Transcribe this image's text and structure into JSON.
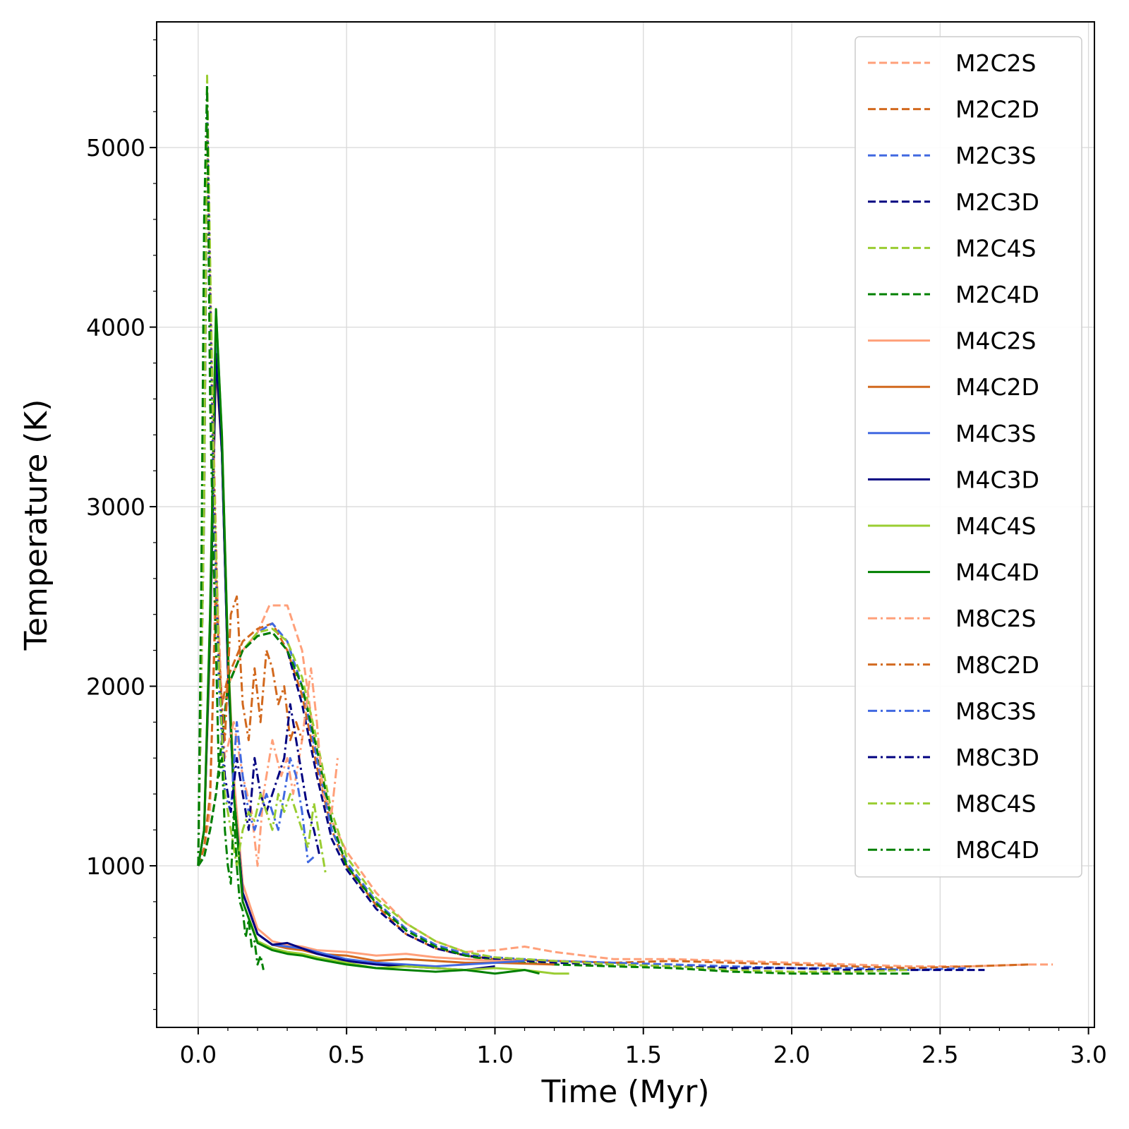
{
  "chart_data": {
    "type": "line",
    "xlabel": "Time (Myr)",
    "ylabel": "Temperature (K)",
    "xlim": [
      -0.14,
      3.02
    ],
    "ylim": [
      100,
      5700
    ],
    "x_ticks": [
      0.0,
      0.5,
      1.0,
      1.5,
      2.0,
      2.5,
      3.0
    ],
    "x_tick_labels": [
      "0.0",
      "0.5",
      "1.0",
      "1.5",
      "2.0",
      "2.5",
      "3.0"
    ],
    "y_ticks": [
      1000,
      2000,
      3000,
      4000,
      5000
    ],
    "y_tick_labels": [
      "1000",
      "2000",
      "3000",
      "4000",
      "5000"
    ],
    "grid": true,
    "legend_position": "top-right",
    "series": [
      {
        "name": "M2C2S",
        "color": "#FFA07A",
        "dash": "dashed",
        "x": [
          0,
          0.02,
          0.04,
          0.06,
          0.08,
          0.1,
          0.15,
          0.2,
          0.24,
          0.3,
          0.35,
          0.4,
          0.45,
          0.5,
          0.6,
          0.7,
          0.8,
          0.9,
          1.0,
          1.1,
          1.2,
          1.4,
          1.6,
          1.8,
          2.0,
          2.2,
          2.4,
          2.6,
          2.8,
          2.88
        ],
        "y": [
          1000,
          1100,
          1300,
          2700,
          1900,
          2000,
          2200,
          2300,
          2450,
          2450,
          2200,
          1600,
          1250,
          1080,
          850,
          680,
          580,
          520,
          530,
          550,
          520,
          480,
          480,
          470,
          460,
          450,
          440,
          440,
          450,
          450
        ]
      },
      {
        "name": "M2C2D",
        "color": "#D2691E",
        "dash": "dashed",
        "x": [
          0,
          0.02,
          0.04,
          0.06,
          0.08,
          0.1,
          0.15,
          0.2,
          0.25,
          0.3,
          0.35,
          0.4,
          0.45,
          0.5,
          0.6,
          0.7,
          0.8,
          0.9,
          1.0,
          1.2,
          1.4,
          1.6,
          1.8,
          2.0,
          2.2,
          2.4,
          2.6,
          2.8
        ],
        "y": [
          1000,
          1100,
          1400,
          2500,
          1900,
          2050,
          2250,
          2320,
          2350,
          2200,
          1950,
          1550,
          1200,
          1000,
          780,
          620,
          540,
          500,
          480,
          470,
          460,
          470,
          460,
          450,
          440,
          430,
          440,
          450
        ]
      },
      {
        "name": "M2C3S",
        "color": "#4169E1",
        "dash": "dashed",
        "x": [
          0,
          0.02,
          0.04,
          0.06,
          0.08,
          0.1,
          0.15,
          0.2,
          0.25,
          0.3,
          0.35,
          0.4,
          0.45,
          0.5,
          0.6,
          0.7,
          0.8,
          0.9,
          1.0,
          1.2,
          1.4,
          1.6,
          1.8,
          2.0,
          2.2,
          2.4,
          2.6
        ],
        "y": [
          1000,
          1050,
          1200,
          1400,
          1700,
          2000,
          2200,
          2300,
          2350,
          2250,
          2000,
          1600,
          1200,
          1020,
          800,
          650,
          560,
          510,
          490,
          470,
          460,
          450,
          440,
          430,
          430,
          420,
          430
        ]
      },
      {
        "name": "M2C3D",
        "color": "#000080",
        "dash": "dashed",
        "x": [
          0,
          0.02,
          0.04,
          0.06,
          0.08,
          0.1,
          0.15,
          0.2,
          0.25,
          0.3,
          0.35,
          0.4,
          0.45,
          0.5,
          0.6,
          0.7,
          0.8,
          0.9,
          1.0,
          1.2,
          1.4,
          1.6,
          1.8,
          2.0,
          2.2,
          2.4,
          2.65
        ],
        "y": [
          1000,
          1050,
          1200,
          1400,
          1700,
          2000,
          2200,
          2280,
          2300,
          2200,
          1900,
          1500,
          1150,
          980,
          760,
          620,
          540,
          500,
          480,
          460,
          450,
          440,
          430,
          430,
          420,
          420,
          420
        ]
      },
      {
        "name": "M2C4S",
        "color": "#9ACD32",
        "dash": "dashed",
        "x": [
          0,
          0.02,
          0.04,
          0.06,
          0.08,
          0.1,
          0.15,
          0.2,
          0.25,
          0.3,
          0.35,
          0.4,
          0.45,
          0.5,
          0.6,
          0.7,
          0.8,
          0.9,
          1.0,
          1.2,
          1.4,
          1.6,
          1.8,
          2.0,
          2.2,
          2.4
        ],
        "y": [
          1000,
          1050,
          1200,
          1400,
          1700,
          2000,
          2200,
          2300,
          2320,
          2250,
          2050,
          1700,
          1300,
          1050,
          820,
          680,
          580,
          520,
          490,
          470,
          450,
          440,
          420,
          410,
          410,
          420
        ]
      },
      {
        "name": "M2C4D",
        "color": "#008000",
        "dash": "dashed",
        "x": [
          0,
          0.02,
          0.04,
          0.06,
          0.08,
          0.1,
          0.15,
          0.2,
          0.25,
          0.3,
          0.35,
          0.4,
          0.45,
          0.5,
          0.6,
          0.7,
          0.8,
          0.9,
          1.0,
          1.2,
          1.4,
          1.6,
          1.8,
          2.0,
          2.2,
          2.4
        ],
        "y": [
          1000,
          1050,
          1200,
          1400,
          1700,
          2000,
          2200,
          2280,
          2300,
          2200,
          2000,
          1650,
          1250,
          1000,
          790,
          640,
          550,
          500,
          470,
          450,
          440,
          430,
          410,
          400,
          400,
          400
        ]
      },
      {
        "name": "M4C2S",
        "color": "#FFA07A",
        "dash": "solid",
        "x": [
          0,
          0.02,
          0.04,
          0.06,
          0.08,
          0.1,
          0.12,
          0.15,
          0.2,
          0.25,
          0.3,
          0.35,
          0.4,
          0.5,
          0.6,
          0.7,
          0.8,
          0.9,
          1.0,
          1.1
        ],
        "y": [
          1000,
          1200,
          2200,
          3900,
          3400,
          2200,
          1500,
          900,
          650,
          580,
          560,
          550,
          530,
          520,
          500,
          510,
          490,
          480,
          470,
          470
        ]
      },
      {
        "name": "M4C2D",
        "color": "#D2691E",
        "dash": "solid",
        "x": [
          0,
          0.02,
          0.04,
          0.06,
          0.08,
          0.1,
          0.12,
          0.15,
          0.2,
          0.25,
          0.3,
          0.35,
          0.4,
          0.5,
          0.6,
          0.7,
          0.8,
          0.9,
          1.0,
          1.2
        ],
        "y": [
          1000,
          1200,
          2300,
          3800,
          3300,
          2100,
          1400,
          850,
          620,
          560,
          540,
          530,
          510,
          500,
          470,
          480,
          470,
          460,
          460,
          450
        ]
      },
      {
        "name": "M4C3S",
        "color": "#4169E1",
        "dash": "solid",
        "x": [
          0,
          0.02,
          0.04,
          0.06,
          0.08,
          0.1,
          0.12,
          0.15,
          0.2,
          0.25,
          0.3,
          0.35,
          0.4,
          0.5,
          0.6,
          0.7,
          0.8,
          0.9,
          1.0,
          1.1
        ],
        "y": [
          1000,
          1200,
          2300,
          3900,
          3300,
          2100,
          1400,
          850,
          620,
          560,
          550,
          540,
          520,
          480,
          460,
          450,
          440,
          450,
          460,
          470
        ]
      },
      {
        "name": "M4C3D",
        "color": "#000080",
        "dash": "solid",
        "x": [
          0,
          0.02,
          0.04,
          0.06,
          0.08,
          0.1,
          0.12,
          0.15,
          0.2,
          0.25,
          0.3,
          0.35,
          0.4,
          0.5,
          0.6,
          0.7,
          0.8,
          0.9,
          1.0
        ],
        "y": [
          1000,
          1200,
          2300,
          3850,
          3300,
          2100,
          1400,
          850,
          620,
          560,
          570,
          540,
          510,
          470,
          450,
          440,
          430,
          420,
          440
        ]
      },
      {
        "name": "M4C4S",
        "color": "#9ACD32",
        "dash": "solid",
        "x": [
          0,
          0.02,
          0.04,
          0.06,
          0.08,
          0.1,
          0.12,
          0.15,
          0.2,
          0.25,
          0.3,
          0.35,
          0.4,
          0.5,
          0.6,
          0.7,
          0.8,
          0.9,
          1.0,
          1.1,
          1.2,
          1.25
        ],
        "y": [
          1000,
          1200,
          2400,
          4100,
          3400,
          2200,
          1400,
          800,
          580,
          540,
          520,
          510,
          490,
          460,
          430,
          440,
          430,
          420,
          430,
          420,
          400,
          400
        ]
      },
      {
        "name": "M4C4D",
        "color": "#008000",
        "dash": "solid",
        "x": [
          0,
          0.02,
          0.04,
          0.06,
          0.08,
          0.1,
          0.12,
          0.15,
          0.2,
          0.25,
          0.3,
          0.35,
          0.4,
          0.5,
          0.6,
          0.7,
          0.8,
          0.9,
          1.0,
          1.1,
          1.15
        ],
        "y": [
          1000,
          1200,
          2400,
          4100,
          3400,
          2200,
          1400,
          800,
          570,
          530,
          510,
          500,
          480,
          450,
          430,
          420,
          410,
          420,
          400,
          420,
          400
        ]
      },
      {
        "name": "M8C2S",
        "color": "#FFA07A",
        "dash": "dashdot",
        "x": [
          0,
          0.02,
          0.03,
          0.05,
          0.07,
          0.09,
          0.12,
          0.15,
          0.18,
          0.2,
          0.22,
          0.25,
          0.28,
          0.3,
          0.32,
          0.35,
          0.38,
          0.4,
          0.42,
          0.45,
          0.47
        ],
        "y": [
          1000,
          3000,
          5200,
          3500,
          2200,
          1600,
          1800,
          1500,
          1300,
          1000,
          1400,
          1700,
          1500,
          1600,
          1400,
          1700,
          2100,
          1800,
          1400,
          1300,
          1600
        ]
      },
      {
        "name": "M8C2D",
        "color": "#D2691E",
        "dash": "dashdot",
        "x": [
          0,
          0.02,
          0.03,
          0.05,
          0.07,
          0.09,
          0.11,
          0.13,
          0.15,
          0.17,
          0.19,
          0.21,
          0.23,
          0.25,
          0.27,
          0.29,
          0.31,
          0.33,
          0.35
        ],
        "y": [
          1000,
          3000,
          5100,
          3300,
          2100,
          1700,
          2400,
          2500,
          1900,
          1700,
          2100,
          1800,
          2200,
          2100,
          1900,
          2000,
          1700,
          1800,
          1700
        ]
      },
      {
        "name": "M8C3S",
        "color": "#4169E1",
        "dash": "dashdot",
        "x": [
          0,
          0.02,
          0.03,
          0.05,
          0.07,
          0.09,
          0.11,
          0.13,
          0.15,
          0.17,
          0.19,
          0.21,
          0.23,
          0.25,
          0.27,
          0.29,
          0.31,
          0.33,
          0.35,
          0.37,
          0.39
        ],
        "y": [
          1000,
          3000,
          5200,
          3200,
          2000,
          1400,
          1300,
          1800,
          1500,
          1300,
          1200,
          1300,
          1400,
          1300,
          1200,
          1400,
          1600,
          1500,
          1300,
          1020,
          1050
        ]
      },
      {
        "name": "M8C3D",
        "color": "#000080",
        "dash": "dashdot",
        "x": [
          0,
          0.02,
          0.03,
          0.05,
          0.07,
          0.09,
          0.11,
          0.13,
          0.15,
          0.17,
          0.19,
          0.21,
          0.23,
          0.25,
          0.27,
          0.29,
          0.31,
          0.33,
          0.35,
          0.37,
          0.39,
          0.41
        ],
        "y": [
          1000,
          3000,
          5300,
          3300,
          2100,
          1500,
          1300,
          1600,
          1400,
          1200,
          1600,
          1400,
          1300,
          1400,
          1500,
          1600,
          1900,
          1700,
          1500,
          1300,
          1200,
          1050
        ]
      },
      {
        "name": "M8C4S",
        "color": "#9ACD32",
        "dash": "dashdot",
        "x": [
          0,
          0.02,
          0.03,
          0.05,
          0.07,
          0.09,
          0.11,
          0.13,
          0.15,
          0.17,
          0.19,
          0.21,
          0.23,
          0.25,
          0.27,
          0.29,
          0.31,
          0.33,
          0.35,
          0.37,
          0.39,
          0.41,
          0.43
        ],
        "y": [
          1000,
          3000,
          5400,
          3400,
          2100,
          1400,
          1200,
          1000,
          1200,
          1300,
          1250,
          1400,
          1300,
          1200,
          1400,
          1300,
          1400,
          1300,
          1200,
          1100,
          1350,
          1150,
          950
        ]
      },
      {
        "name": "M8C4D",
        "color": "#008000",
        "dash": "dashdot",
        "x": [
          0,
          0.01,
          0.02,
          0.03,
          0.04,
          0.05,
          0.06,
          0.07,
          0.08,
          0.09,
          0.1,
          0.11,
          0.12,
          0.13,
          0.14,
          0.15,
          0.16,
          0.17,
          0.18,
          0.19,
          0.2,
          0.21,
          0.22
        ],
        "y": [
          1000,
          2500,
          4600,
          5350,
          3600,
          2800,
          2200,
          1500,
          1600,
          1200,
          1000,
          900,
          1300,
          1000,
          800,
          750,
          600,
          700,
          550,
          580,
          450,
          500,
          420
        ]
      }
    ],
    "legend_entries": [
      "M2C2S",
      "M2C2D",
      "M2C3S",
      "M2C3D",
      "M2C4S",
      "M2C4D",
      "M4C2S",
      "M4C2D",
      "M4C3S",
      "M4C3D",
      "M4C4S",
      "M4C4D",
      "M8C2S",
      "M8C2D",
      "M8C3S",
      "M8C3D",
      "M8C4S",
      "M8C4D"
    ]
  }
}
